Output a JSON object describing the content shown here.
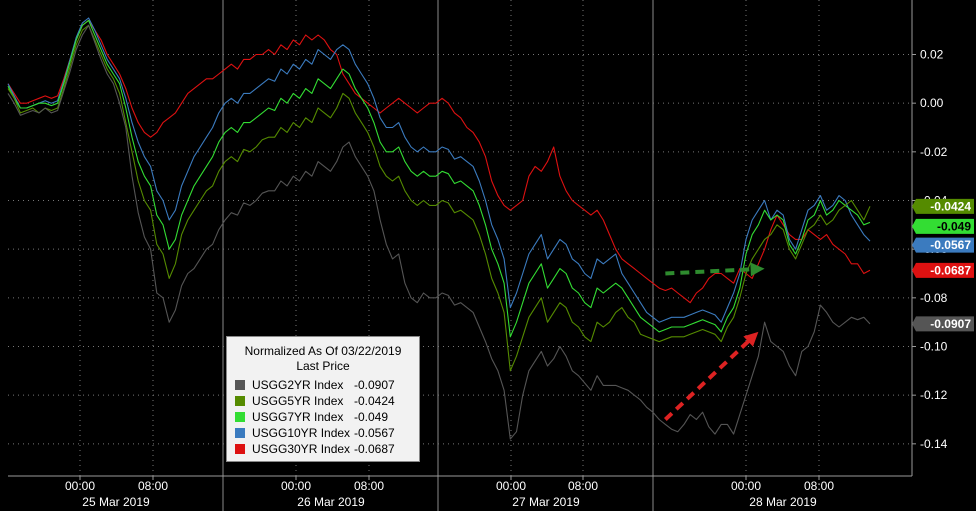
{
  "chart_data": {
    "type": "line",
    "title": "",
    "legend": {
      "title_line1": "Normalized As Of 03/22/2019",
      "title_line2": "Last Price",
      "placement": "bottom-left"
    },
    "ylim": [
      -0.145,
      0.035
    ],
    "y_ticks": [
      "0.02",
      "0.00",
      "-0.02",
      "-0.04",
      "-0.06",
      "-0.08",
      "-0.10",
      "-0.12",
      "-0.14"
    ],
    "y_tick_values": [
      0.02,
      0.0,
      -0.02,
      -0.04,
      -0.06,
      -0.08,
      -0.1,
      -0.12,
      -0.14
    ],
    "x_time_ticks": [
      "00:00",
      "08:00",
      "00:00",
      "08:00",
      "00:00",
      "08:00",
      "00:00",
      "08:00"
    ],
    "x_date_labels": [
      "25 Mar 2019",
      "26 Mar 2019",
      "27 Mar 2019",
      "28 Mar 2019"
    ],
    "grid": true,
    "x": [
      0,
      1,
      2,
      3,
      4,
      5,
      6,
      7,
      8,
      9,
      10,
      11,
      12,
      13,
      14,
      15,
      16,
      17,
      18,
      19,
      20,
      21,
      22,
      23,
      24,
      25,
      26,
      27,
      28,
      29,
      30,
      31,
      32,
      33,
      34,
      35,
      36,
      37,
      38,
      39,
      40,
      41,
      42,
      43,
      44,
      45,
      46,
      47,
      48,
      49,
      50,
      51,
      52,
      53,
      54,
      55,
      56,
      57,
      58,
      59,
      60,
      61,
      62,
      63,
      64,
      65,
      66,
      67,
      68,
      69,
      70,
      71,
      72,
      73,
      74,
      75,
      76,
      77,
      78,
      79,
      80,
      81,
      82,
      83,
      84,
      85,
      86,
      87,
      88,
      89,
      90,
      91,
      92,
      93,
      94,
      95,
      96,
      97,
      98,
      99,
      100,
      101,
      102,
      103,
      104,
      105,
      106,
      107,
      108,
      109,
      110,
      111,
      112,
      113,
      114,
      115,
      116,
      117,
      118,
      119,
      120,
      121,
      122,
      123,
      124,
      125,
      126,
      127,
      128,
      129,
      130,
      131,
      132,
      133,
      134,
      135,
      136,
      137,
      138,
      139
    ],
    "series": [
      {
        "name": "USGG2YR Index",
        "last": "-0.0907",
        "color": "#555555",
        "values": [
          0.004,
          0.0,
          -0.005,
          -0.004,
          -0.003,
          -0.004,
          -0.002,
          -0.004,
          -0.003,
          0.005,
          0.013,
          0.022,
          0.028,
          0.032,
          0.025,
          0.018,
          0.012,
          0.008,
          0.0,
          -0.01,
          -0.03,
          -0.045,
          -0.055,
          -0.06,
          -0.078,
          -0.08,
          -0.09,
          -0.085,
          -0.075,
          -0.07,
          -0.068,
          -0.064,
          -0.06,
          -0.058,
          -0.052,
          -0.048,
          -0.045,
          -0.046,
          -0.041,
          -0.042,
          -0.04,
          -0.037,
          -0.036,
          -0.036,
          -0.032,
          -0.034,
          -0.03,
          -0.032,
          -0.028,
          -0.03,
          -0.024,
          -0.026,
          -0.028,
          -0.024,
          -0.018,
          -0.016,
          -0.022,
          -0.026,
          -0.03,
          -0.036,
          -0.048,
          -0.058,
          -0.064,
          -0.062,
          -0.074,
          -0.08,
          -0.082,
          -0.078,
          -0.08,
          -0.08,
          -0.078,
          -0.079,
          -0.083,
          -0.082,
          -0.084,
          -0.086,
          -0.092,
          -0.098,
          -0.105,
          -0.11,
          -0.118,
          -0.138,
          -0.135,
          -0.12,
          -0.11,
          -0.106,
          -0.102,
          -0.108,
          -0.105,
          -0.1,
          -0.104,
          -0.11,
          -0.112,
          -0.115,
          -0.118,
          -0.112,
          -0.116,
          -0.116,
          -0.116,
          -0.117,
          -0.118,
          -0.12,
          -0.122,
          -0.125,
          -0.127,
          -0.13,
          -0.132,
          -0.134,
          -0.135,
          -0.132,
          -0.128,
          -0.13,
          -0.127,
          -0.133,
          -0.136,
          -0.132,
          -0.132,
          -0.136,
          -0.128,
          -0.12,
          -0.112,
          -0.104,
          -0.09,
          -0.098,
          -0.1,
          -0.102,
          -0.108,
          -0.112,
          -0.102,
          -0.1,
          -0.094,
          -0.083,
          -0.086,
          -0.09,
          -0.092,
          -0.09,
          -0.088,
          -0.089,
          -0.088,
          -0.0907
        ]
      },
      {
        "name": "USGG5YR Index",
        "last": "-0.0424",
        "color": "#558b00",
        "values": [
          0.006,
          0.002,
          -0.004,
          -0.003,
          -0.002,
          -0.004,
          -0.002,
          -0.003,
          -0.002,
          0.006,
          0.015,
          0.024,
          0.03,
          0.032,
          0.026,
          0.02,
          0.014,
          0.01,
          0.004,
          -0.008,
          -0.02,
          -0.032,
          -0.04,
          -0.044,
          -0.058,
          -0.062,
          -0.072,
          -0.066,
          -0.054,
          -0.048,
          -0.044,
          -0.04,
          -0.036,
          -0.034,
          -0.028,
          -0.024,
          -0.022,
          -0.024,
          -0.019,
          -0.02,
          -0.018,
          -0.015,
          -0.014,
          -0.014,
          -0.01,
          -0.012,
          -0.008,
          -0.01,
          -0.006,
          -0.008,
          -0.002,
          -0.004,
          -0.006,
          -0.002,
          0.004,
          0.002,
          -0.004,
          -0.008,
          -0.012,
          -0.018,
          -0.026,
          -0.03,
          -0.032,
          -0.03,
          -0.036,
          -0.04,
          -0.042,
          -0.04,
          -0.042,
          -0.042,
          -0.04,
          -0.041,
          -0.045,
          -0.044,
          -0.046,
          -0.048,
          -0.054,
          -0.062,
          -0.072,
          -0.078,
          -0.086,
          -0.11,
          -0.104,
          -0.096,
          -0.088,
          -0.084,
          -0.08,
          -0.09,
          -0.086,
          -0.082,
          -0.084,
          -0.09,
          -0.092,
          -0.096,
          -0.098,
          -0.09,
          -0.092,
          -0.09,
          -0.086,
          -0.084,
          -0.088,
          -0.09,
          -0.095,
          -0.096,
          -0.097,
          -0.098,
          -0.097,
          -0.096,
          -0.096,
          -0.096,
          -0.095,
          -0.094,
          -0.093,
          -0.094,
          -0.095,
          -0.098,
          -0.092,
          -0.088,
          -0.08,
          -0.07,
          -0.064,
          -0.06,
          -0.056,
          -0.054,
          -0.05,
          -0.052,
          -0.06,
          -0.064,
          -0.058,
          -0.052,
          -0.05,
          -0.046,
          -0.05,
          -0.048,
          -0.044,
          -0.042,
          -0.04,
          -0.044,
          -0.048,
          -0.0424
        ]
      },
      {
        "name": "USGG7YR Index",
        "last": "-0.049",
        "color": "#33dd33",
        "values": [
          0.007,
          0.002,
          -0.002,
          -0.002,
          -0.001,
          0.0,
          0.0,
          -0.001,
          0.0,
          0.008,
          0.017,
          0.026,
          0.032,
          0.034,
          0.028,
          0.022,
          0.016,
          0.012,
          0.008,
          -0.002,
          -0.014,
          -0.024,
          -0.03,
          -0.034,
          -0.046,
          -0.05,
          -0.06,
          -0.056,
          -0.046,
          -0.04,
          -0.034,
          -0.03,
          -0.026,
          -0.022,
          -0.016,
          -0.012,
          -0.01,
          -0.012,
          -0.008,
          -0.008,
          -0.006,
          -0.004,
          -0.002,
          -0.003,
          0.002,
          0.0,
          0.004,
          0.002,
          0.006,
          0.004,
          0.01,
          0.008,
          0.006,
          0.01,
          0.014,
          0.012,
          0.006,
          0.002,
          -0.002,
          -0.008,
          -0.016,
          -0.02,
          -0.02,
          -0.018,
          -0.024,
          -0.028,
          -0.03,
          -0.028,
          -0.03,
          -0.03,
          -0.028,
          -0.029,
          -0.033,
          -0.032,
          -0.034,
          -0.036,
          -0.042,
          -0.05,
          -0.06,
          -0.066,
          -0.074,
          -0.096,
          -0.09,
          -0.082,
          -0.074,
          -0.07,
          -0.066,
          -0.076,
          -0.072,
          -0.068,
          -0.07,
          -0.076,
          -0.078,
          -0.082,
          -0.084,
          -0.076,
          -0.078,
          -0.076,
          -0.074,
          -0.076,
          -0.08,
          -0.084,
          -0.088,
          -0.09,
          -0.092,
          -0.094,
          -0.093,
          -0.092,
          -0.092,
          -0.092,
          -0.091,
          -0.09,
          -0.089,
          -0.09,
          -0.091,
          -0.094,
          -0.088,
          -0.084,
          -0.076,
          -0.062,
          -0.054,
          -0.05,
          -0.044,
          -0.048,
          -0.046,
          -0.048,
          -0.058,
          -0.062,
          -0.056,
          -0.048,
          -0.046,
          -0.04,
          -0.046,
          -0.044,
          -0.04,
          -0.042,
          -0.044,
          -0.046,
          -0.05,
          -0.049
        ]
      },
      {
        "name": "USGG10YR Index",
        "last": "-0.0567",
        "color": "#3b7bbf",
        "values": [
          0.008,
          0.003,
          -0.002,
          -0.002,
          -0.001,
          0.0,
          0.001,
          0.0,
          0.001,
          0.009,
          0.018,
          0.027,
          0.033,
          0.035,
          0.03,
          0.024,
          0.018,
          0.014,
          0.01,
          0.002,
          -0.008,
          -0.016,
          -0.022,
          -0.026,
          -0.036,
          -0.04,
          -0.048,
          -0.044,
          -0.034,
          -0.028,
          -0.022,
          -0.018,
          -0.014,
          -0.01,
          -0.004,
          0.0,
          0.002,
          0.0,
          0.004,
          0.004,
          0.006,
          0.008,
          0.01,
          0.009,
          0.014,
          0.012,
          0.016,
          0.014,
          0.018,
          0.016,
          0.022,
          0.02,
          0.018,
          0.022,
          0.024,
          0.022,
          0.016,
          0.012,
          0.008,
          0.002,
          -0.006,
          -0.01,
          -0.01,
          -0.008,
          -0.014,
          -0.018,
          -0.02,
          -0.018,
          -0.02,
          -0.02,
          -0.018,
          -0.019,
          -0.023,
          -0.022,
          -0.024,
          -0.026,
          -0.032,
          -0.04,
          -0.05,
          -0.056,
          -0.064,
          -0.084,
          -0.078,
          -0.07,
          -0.062,
          -0.058,
          -0.054,
          -0.064,
          -0.06,
          -0.056,
          -0.058,
          -0.064,
          -0.066,
          -0.07,
          -0.072,
          -0.064,
          -0.066,
          -0.064,
          -0.062,
          -0.07,
          -0.074,
          -0.078,
          -0.082,
          -0.086,
          -0.088,
          -0.09,
          -0.089,
          -0.088,
          -0.088,
          -0.088,
          -0.087,
          -0.086,
          -0.085,
          -0.086,
          -0.087,
          -0.09,
          -0.084,
          -0.078,
          -0.07,
          -0.056,
          -0.048,
          -0.044,
          -0.04,
          -0.048,
          -0.044,
          -0.046,
          -0.056,
          -0.06,
          -0.052,
          -0.044,
          -0.042,
          -0.038,
          -0.044,
          -0.042,
          -0.038,
          -0.04,
          -0.046,
          -0.05,
          -0.054,
          -0.0567
        ]
      },
      {
        "name": "USGG30YR Index",
        "last": "-0.0687",
        "color": "#dd1111",
        "values": [
          0.008,
          0.004,
          0.0,
          0.0,
          0.001,
          0.002,
          0.003,
          0.002,
          0.003,
          0.01,
          0.018,
          0.026,
          0.032,
          0.034,
          0.03,
          0.026,
          0.02,
          0.016,
          0.012,
          0.006,
          -0.002,
          -0.008,
          -0.012,
          -0.014,
          -0.012,
          -0.008,
          -0.006,
          -0.004,
          0.0,
          0.004,
          0.006,
          0.008,
          0.01,
          0.01,
          0.012,
          0.014,
          0.016,
          0.014,
          0.018,
          0.018,
          0.02,
          0.02,
          0.022,
          0.02,
          0.024,
          0.022,
          0.026,
          0.024,
          0.028,
          0.026,
          0.028,
          0.026,
          0.022,
          0.02,
          0.012,
          0.008,
          0.004,
          0.002,
          0.0,
          -0.002,
          -0.004,
          -0.002,
          0.0,
          0.002,
          0.0,
          -0.002,
          -0.004,
          -0.002,
          0.0,
          0.0,
          0.002,
          0.0,
          -0.004,
          -0.006,
          -0.01,
          -0.012,
          -0.016,
          -0.022,
          -0.032,
          -0.038,
          -0.042,
          -0.044,
          -0.042,
          -0.04,
          -0.03,
          -0.026,
          -0.028,
          -0.024,
          -0.018,
          -0.03,
          -0.036,
          -0.04,
          -0.042,
          -0.044,
          -0.046,
          -0.044,
          -0.048,
          -0.054,
          -0.06,
          -0.064,
          -0.066,
          -0.068,
          -0.07,
          -0.072,
          -0.074,
          -0.076,
          -0.077,
          -0.076,
          -0.078,
          -0.08,
          -0.082,
          -0.078,
          -0.076,
          -0.072,
          -0.07,
          -0.07,
          -0.072,
          -0.074,
          -0.068,
          -0.07,
          -0.072,
          -0.066,
          -0.06,
          -0.052,
          -0.046,
          -0.05,
          -0.054,
          -0.056,
          -0.056,
          -0.052,
          -0.054,
          -0.056,
          -0.054,
          -0.058,
          -0.06,
          -0.062,
          -0.066,
          -0.066,
          -0.07,
          -0.0687
        ]
      }
    ],
    "annotations": [
      {
        "kind": "dashed-arrow",
        "color": "#2e8b2e",
        "from": [
          106,
          -0.07
        ],
        "to": [
          122,
          -0.068
        ]
      },
      {
        "kind": "dashed-arrow",
        "color": "#dd2222",
        "from": [
          106,
          -0.13
        ],
        "to": [
          121,
          -0.094
        ]
      }
    ]
  }
}
